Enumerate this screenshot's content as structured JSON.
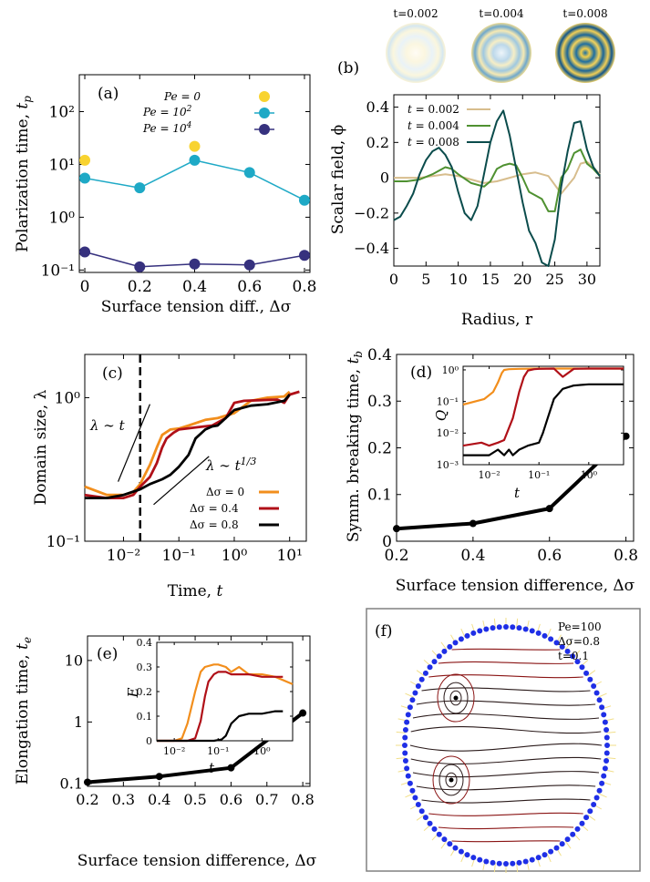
{
  "colors": {
    "gold": "#f8d330",
    "teal": "#1ea9c6",
    "navy": "#36317e",
    "tan": "#d7bd8d",
    "green": "#4f9131",
    "darkteal": "#0b4c4c",
    "orange": "#f28e1c",
    "red": "#b01018",
    "black": "#000000",
    "blue": "#1f2fe6",
    "streamDark": "#2a1a1a",
    "streamRed": "#8a1414"
  },
  "panels": {
    "a": {
      "label": "(a)",
      "ylabel": "Polarization time, t_p",
      "xlabel": "Surface tension diff., Δσ"
    },
    "b": {
      "label": "(b)",
      "ylabel": "Scalar field, ϕ",
      "xlabel": "Radius, r",
      "thumbs": [
        "t=0.002",
        "t=0.004",
        "t=0.008"
      ]
    },
    "c": {
      "label": "(c)",
      "ylabel": "Domain size, λ",
      "xlabel": "Time, t",
      "annot1": "λ ∼ t",
      "annot2": "λ ∼ t^1/3"
    },
    "d": {
      "label": "(d)",
      "ylabel": "Symm. breaking time, t_b",
      "xlabel": "Surface tension difference, Δσ",
      "inset_ylabel": "Q",
      "inset_xlabel": "t"
    },
    "e": {
      "label": "(e)",
      "ylabel": "Elongation time, t_e",
      "xlabel": "Surface tension difference, Δσ",
      "inset_ylabel": "E",
      "inset_xlabel": "t"
    },
    "f": {
      "label": "(f)",
      "lines": [
        "Pe=100",
        "Δσ=0.8",
        "t=0.1"
      ]
    }
  },
  "chart_data": [
    {
      "panel": "a",
      "type": "scatter",
      "xlabel": "Surface tension diff., Δσ",
      "ylabel": "Polarization time, t_p",
      "yscale": "log",
      "xlim": [
        -0.02,
        0.82
      ],
      "ylim": [
        0.09,
        500
      ],
      "xticks": [
        0,
        0.2,
        0.4,
        0.6,
        0.8
      ],
      "xticklabels": [
        "0",
        "0.2",
        "0.4",
        "0.6",
        "0.8"
      ],
      "yticks": [
        0.1,
        1,
        10,
        100
      ],
      "yticklabels": [
        "10⁻¹",
        "10⁰",
        "10¹",
        "10²"
      ],
      "series": [
        {
          "name": "Pe = 0",
          "color": "#f8d330",
          "line": false,
          "x": [
            0,
            0.4
          ],
          "y": [
            12,
            22
          ]
        },
        {
          "name": "Pe = 10²",
          "color": "#1ea9c6",
          "line": true,
          "x": [
            0,
            0.2,
            0.4,
            0.6,
            0.8
          ],
          "y": [
            5.5,
            3.6,
            12,
            7,
            2.1
          ]
        },
        {
          "name": "Pe = 10⁴",
          "color": "#36317e",
          "line": true,
          "x": [
            0,
            0.2,
            0.4,
            0.6,
            0.8
          ],
          "y": [
            0.22,
            0.115,
            0.13,
            0.125,
            0.19
          ]
        }
      ]
    },
    {
      "panel": "b",
      "type": "line",
      "xlabel": "Radius, r",
      "ylabel": "Scalar field, ϕ",
      "xlim": [
        0,
        32
      ],
      "ylim": [
        -0.5,
        0.47
      ],
      "xticks": [
        0,
        5,
        10,
        15,
        20,
        25,
        30
      ],
      "xticklabels": [
        "0",
        "5",
        "10",
        "15",
        "20",
        "25",
        "30"
      ],
      "yticks": [
        -0.4,
        -0.2,
        0,
        0.2,
        0.4
      ],
      "yticklabels": [
        "−0.4",
        "−0.2",
        "0",
        "0.2",
        "0.4"
      ],
      "series": [
        {
          "name": "t = 0.002",
          "color": "#d7bd8d",
          "x": [
            0,
            2,
            4,
            6,
            8,
            10,
            12,
            14,
            16,
            18,
            20,
            22,
            24,
            26,
            28,
            29,
            30,
            31,
            32
          ],
          "y": [
            0,
            0,
            0,
            0.01,
            0.02,
            0.01,
            -0.01,
            -0.03,
            -0.02,
            0,
            0.02,
            0.03,
            0.01,
            -0.09,
            0,
            0.08,
            0.09,
            0.06,
            0.02
          ]
        },
        {
          "name": "t = 0.004",
          "color": "#4f9131",
          "x": [
            0,
            2,
            4,
            6,
            8,
            9,
            10,
            12,
            14,
            15,
            16,
            17,
            18,
            19,
            20,
            21,
            22,
            23,
            24,
            25,
            26,
            27,
            28,
            29,
            30,
            31,
            32
          ],
          "y": [
            -0.02,
            -0.02,
            -0.01,
            0.02,
            0.06,
            0.05,
            0.02,
            -0.03,
            -0.05,
            -0.02,
            0.05,
            0.07,
            0.08,
            0.07,
            0,
            -0.08,
            -0.1,
            -0.12,
            -0.19,
            -0.19,
            0,
            0.05,
            0.14,
            0.16,
            0.08,
            0.05,
            0.01
          ]
        },
        {
          "name": "t = 0.008",
          "color": "#0b4c4c",
          "x": [
            0,
            1,
            2,
            3,
            4,
            5,
            6,
            7,
            8,
            9,
            10,
            11,
            12,
            13,
            14,
            15,
            16,
            17,
            18,
            19,
            20,
            21,
            22,
            23,
            24,
            25,
            26,
            27,
            28,
            29,
            30,
            31,
            32
          ],
          "y": [
            -0.24,
            -0.22,
            -0.16,
            -0.09,
            0.02,
            0.1,
            0.15,
            0.17,
            0.13,
            0.06,
            -0.08,
            -0.2,
            -0.24,
            -0.16,
            0.02,
            0.2,
            0.32,
            0.38,
            0.24,
            0.05,
            -0.14,
            -0.3,
            -0.37,
            -0.48,
            -0.5,
            -0.35,
            -0.05,
            0.15,
            0.31,
            0.32,
            0.16,
            0.06,
            0.01
          ]
        }
      ]
    },
    {
      "panel": "c",
      "type": "line",
      "xlabel": "Time, t",
      "ylabel": "Domain size, λ",
      "xscale": "log",
      "yscale": "log",
      "xlim": [
        0.002,
        20
      ],
      "ylim": [
        0.1,
        2
      ],
      "xticks": [
        0.01,
        0.1,
        1,
        10
      ],
      "xticklabels": [
        "10⁻²",
        "10⁻¹",
        "10⁰",
        "10¹"
      ],
      "yticks": [
        0.1,
        1
      ],
      "yticklabels": [
        "10⁻¹",
        "10⁰"
      ],
      "vline": 0.02,
      "series": [
        {
          "name": "Δσ = 0",
          "color": "#f28e1c",
          "x": [
            0.002,
            0.005,
            0.01,
            0.015,
            0.02,
            0.03,
            0.04,
            0.05,
            0.07,
            0.1,
            0.15,
            0.3,
            0.5,
            1,
            2,
            4,
            8,
            10
          ],
          "y": [
            0.24,
            0.21,
            0.21,
            0.22,
            0.25,
            0.34,
            0.45,
            0.55,
            0.6,
            0.61,
            0.64,
            0.7,
            0.72,
            0.78,
            0.95,
            1.0,
            1.02,
            1.1
          ]
        },
        {
          "name": "Δσ = 0.4",
          "color": "#b01018",
          "x": [
            0.002,
            0.005,
            0.01,
            0.015,
            0.02,
            0.03,
            0.04,
            0.05,
            0.06,
            0.08,
            0.1,
            0.2,
            0.4,
            0.7,
            1,
            1.5,
            3,
            6,
            8,
            10,
            15
          ],
          "y": [
            0.21,
            0.2,
            0.2,
            0.21,
            0.24,
            0.28,
            0.35,
            0.45,
            0.52,
            0.57,
            0.6,
            0.62,
            0.64,
            0.72,
            0.92,
            0.95,
            0.96,
            0.97,
            0.92,
            1.05,
            1.1
          ]
        },
        {
          "name": "Δσ = 0.8",
          "color": "#000000",
          "x": [
            0.002,
            0.005,
            0.01,
            0.02,
            0.03,
            0.05,
            0.07,
            0.1,
            0.15,
            0.2,
            0.3,
            0.4,
            0.5,
            0.7,
            1,
            2,
            4,
            8,
            10
          ],
          "y": [
            0.2,
            0.2,
            0.21,
            0.23,
            0.25,
            0.27,
            0.29,
            0.33,
            0.4,
            0.52,
            0.6,
            0.63,
            0.64,
            0.72,
            0.82,
            0.88,
            0.9,
            0.95,
            1.05
          ]
        }
      ],
      "guides": [
        {
          "label": "λ ∼ t",
          "x": [
            0.008,
            0.03
          ],
          "y": [
            0.26,
            0.9
          ]
        },
        {
          "label": "λ ∼ t^1/3",
          "x": [
            0.035,
            0.35
          ],
          "y": [
            0.18,
            0.39
          ]
        }
      ]
    },
    {
      "panel": "d",
      "type": "line",
      "xlabel": "Surface tension difference, Δσ",
      "ylabel": "Symm. breaking time, t_b",
      "xlim": [
        0.2,
        0.82
      ],
      "ylim": [
        0,
        0.4
      ],
      "xticks": [
        0.2,
        0.4,
        0.6,
        0.8
      ],
      "xticklabels": [
        "0.2",
        "0.4",
        "0.6",
        "0.8"
      ],
      "yticks": [
        0,
        0.1,
        0.2,
        0.3,
        0.4
      ],
      "yticklabels": [
        "0",
        "0.1",
        "0.2",
        "0.3",
        "0.4"
      ],
      "series": [
        {
          "name": "",
          "color": "#000000",
          "x": [
            0.2,
            0.4,
            0.6,
            0.8
          ],
          "y": [
            0.027,
            0.038,
            0.07,
            0.225
          ]
        }
      ],
      "inset": {
        "xscale": "log",
        "yscale": "log",
        "xlim": [
          0.003,
          5
        ],
        "ylim": [
          0.001,
          1.3
        ],
        "xticks": [
          0.01,
          0.1,
          1
        ],
        "xticklabels": [
          "10⁻²",
          "10⁻¹",
          "10⁰"
        ],
        "yticks": [
          0.001,
          0.01,
          0.1,
          1
        ],
        "yticklabels": [
          "10⁻³",
          "10⁻²",
          "10⁻¹",
          "10⁰"
        ],
        "series": [
          {
            "name": "Δσ = 0",
            "color": "#f28e1c",
            "x": [
              0.003,
              0.008,
              0.012,
              0.015,
              0.018,
              0.02,
              0.025,
              0.04,
              0.1,
              0.3,
              1,
              5
            ],
            "y": [
              0.08,
              0.12,
              0.2,
              0.4,
              0.8,
              1,
              1.05,
              1.08,
              1.1,
              1.1,
              1.1,
              1.1
            ]
          },
          {
            "name": "Δσ = 0.4",
            "color": "#b01018",
            "x": [
              0.003,
              0.007,
              0.01,
              0.015,
              0.02,
              0.03,
              0.04,
              0.05,
              0.06,
              0.08,
              0.1,
              0.2,
              0.3,
              0.5,
              1,
              5
            ],
            "y": [
              0.004,
              0.005,
              0.004,
              0.005,
              0.006,
              0.03,
              0.2,
              0.6,
              0.95,
              1.05,
              1.08,
              1.1,
              0.6,
              1.08,
              1.1,
              1.1
            ]
          },
          {
            "name": "Δσ = 0.8",
            "color": "#000000",
            "x": [
              0.003,
              0.01,
              0.015,
              0.02,
              0.025,
              0.03,
              0.04,
              0.06,
              0.1,
              0.12,
              0.15,
              0.2,
              0.3,
              0.5,
              1,
              2,
              5
            ],
            "y": [
              0.002,
              0.002,
              0.003,
              0.002,
              0.003,
              0.002,
              0.003,
              0.004,
              0.005,
              0.01,
              0.03,
              0.12,
              0.25,
              0.32,
              0.35,
              0.35,
              0.35
            ]
          }
        ]
      }
    },
    {
      "panel": "e",
      "type": "line",
      "xlabel": "Surface tension difference, Δσ",
      "ylabel": "Elongation time, t_e",
      "yscale": "log",
      "xlim": [
        0.2,
        0.82
      ],
      "ylim": [
        0.09,
        25
      ],
      "xticks": [
        0.2,
        0.3,
        0.4,
        0.5,
        0.6,
        0.7,
        0.8
      ],
      "xticklabels": [
        "0.2",
        "0.3",
        "0.4",
        "0.5",
        "0.6",
        "0.7",
        "0.8"
      ],
      "yticks": [
        0.1,
        1,
        10
      ],
      "yticklabels": [
        "0.1",
        "1",
        "10"
      ],
      "series": [
        {
          "name": "",
          "color": "#000000",
          "x": [
            0.2,
            0.4,
            0.6,
            0.8
          ],
          "y": [
            0.105,
            0.13,
            0.18,
            1.4
          ]
        }
      ],
      "inset": {
        "xscale": "log",
        "xlim": [
          0.004,
          5
        ],
        "ylim": [
          0,
          0.4
        ],
        "xticks": [
          0.01,
          0.1,
          1
        ],
        "xticklabels": [
          "10⁻²",
          "10⁻¹",
          "10⁰"
        ],
        "yticks": [
          0,
          0.1,
          0.2,
          0.3,
          0.4
        ],
        "yticklabels": [
          "0",
          "0.1",
          "0.2",
          "0.3",
          "0.4"
        ],
        "series": [
          {
            "name": "Δσ = 0",
            "color": "#f28e1c",
            "x": [
              0.004,
              0.01,
              0.015,
              0.02,
              0.03,
              0.04,
              0.05,
              0.08,
              0.1,
              0.15,
              0.2,
              0.3,
              0.5,
              1,
              2,
              5
            ],
            "y": [
              0,
              0,
              0.01,
              0.07,
              0.2,
              0.28,
              0.3,
              0.31,
              0.31,
              0.3,
              0.28,
              0.3,
              0.27,
              0.27,
              0.26,
              0.23
            ]
          },
          {
            "name": "Δσ = 0.4",
            "color": "#b01018",
            "x": [
              0.004,
              0.02,
              0.03,
              0.04,
              0.05,
              0.06,
              0.08,
              0.1,
              0.15,
              0.2,
              0.3,
              0.5,
              1,
              2,
              3
            ],
            "y": [
              0,
              0,
              0.01,
              0.08,
              0.18,
              0.24,
              0.27,
              0.28,
              0.28,
              0.27,
              0.27,
              0.27,
              0.26,
              0.26,
              0.26
            ]
          },
          {
            "name": "Δσ = 0.8",
            "color": "#000000",
            "x": [
              0.004,
              0.05,
              0.08,
              0.12,
              0.15,
              0.2,
              0.3,
              0.5,
              1,
              2,
              3
            ],
            "y": [
              0,
              0,
              0,
              0.005,
              0.02,
              0.07,
              0.1,
              0.11,
              0.11,
              0.12,
              0.12
            ]
          }
        ]
      }
    }
  ]
}
